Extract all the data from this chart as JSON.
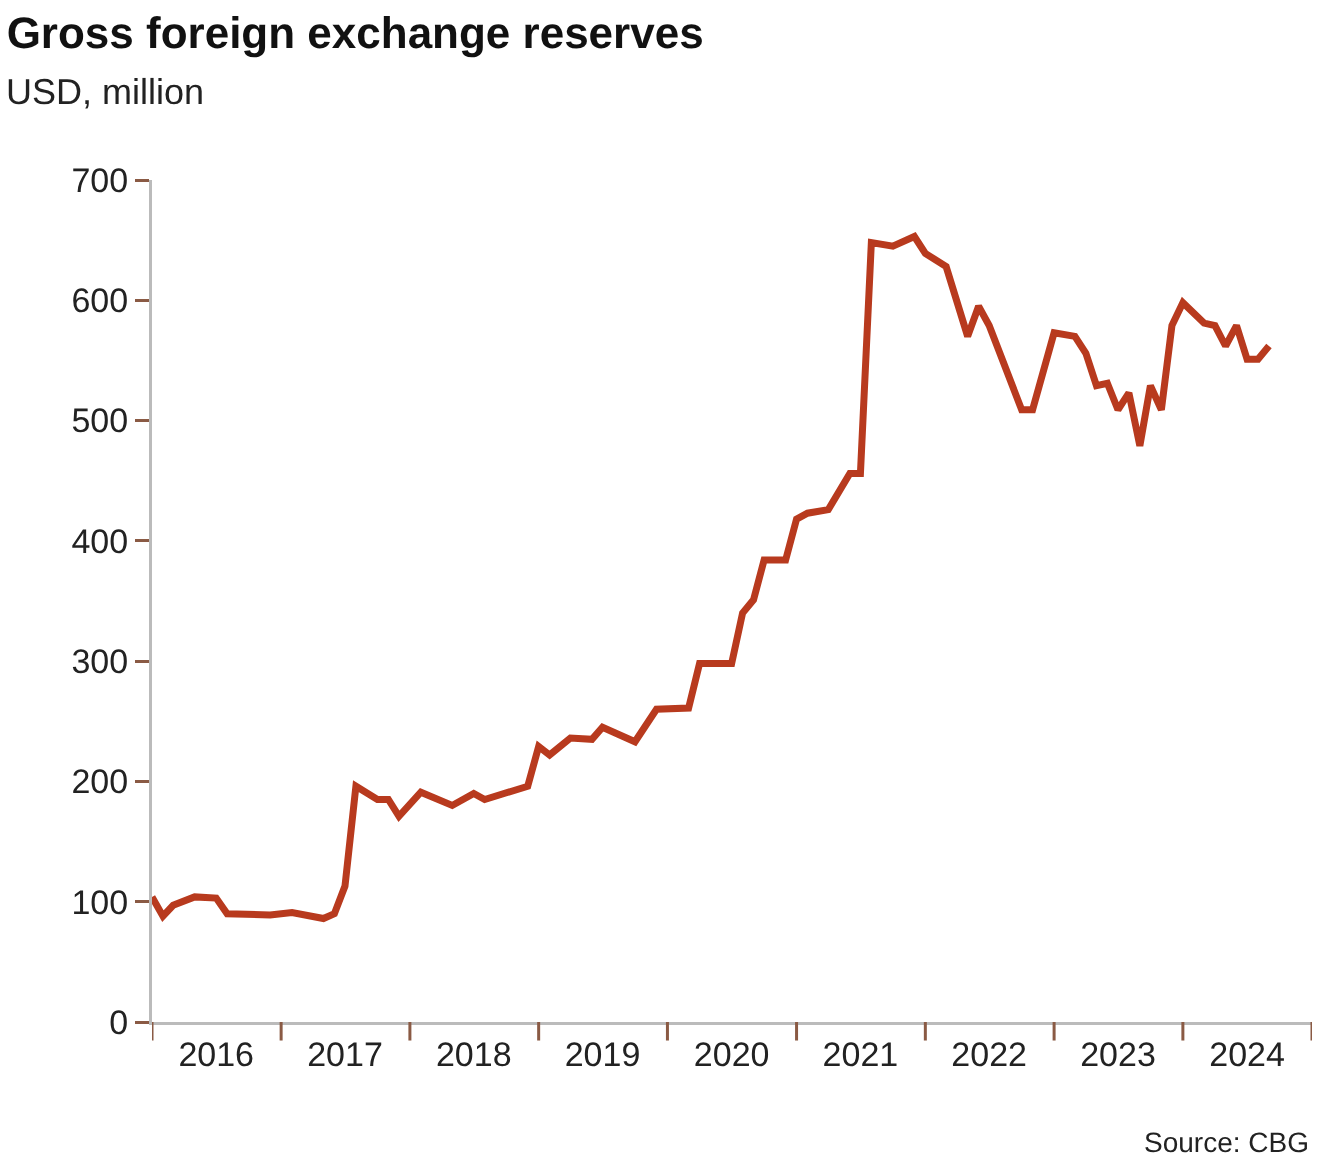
{
  "chart_data": {
    "type": "line",
    "title": "Gross foreign exchange reserves",
    "subtitle": "USD, million",
    "annotations": [
      "Source: CBG"
    ],
    "x": [
      "2016-01",
      "2016-02",
      "2016-03",
      "2016-05",
      "2016-07",
      "2016-08",
      "2016-12",
      "2017-02",
      "2017-05",
      "2017-06",
      "2017-07",
      "2017-08",
      "2017-10",
      "2017-11",
      "2017-12",
      "2018-02",
      "2018-05",
      "2018-07",
      "2018-08",
      "2018-12",
      "2019-01",
      "2019-02",
      "2019-04",
      "2019-06",
      "2019-07",
      "2019-10",
      "2019-12",
      "2020-03",
      "2020-04",
      "2020-07",
      "2020-08",
      "2020-09",
      "2020-10",
      "2020-12",
      "2021-01",
      "2021-02",
      "2021-04",
      "2021-06",
      "2021-07",
      "2021-08",
      "2021-10",
      "2021-12",
      "2022-01",
      "2022-03",
      "2022-05",
      "2022-06",
      "2022-07",
      "2022-10",
      "2022-11",
      "2023-01",
      "2023-03",
      "2023-04",
      "2023-05",
      "2023-06",
      "2023-07",
      "2023-08",
      "2023-09",
      "2023-10",
      "2023-11",
      "2023-12",
      "2024-01",
      "2024-03",
      "2024-04",
      "2024-05",
      "2024-06",
      "2024-07",
      "2024-08",
      "2024-09"
    ],
    "series": [
      {
        "color": "#b83a1e",
        "values": [
          104,
          88,
          97,
          104,
          103,
          90,
          89,
          91,
          86,
          90,
          113,
          196,
          185,
          185,
          171,
          191,
          180,
          190,
          185,
          196,
          229,
          222,
          236,
          235,
          245,
          233,
          260,
          261,
          298,
          298,
          340,
          351,
          384,
          384,
          418,
          423,
          426,
          456,
          456,
          648,
          645,
          653,
          639,
          628,
          570,
          595,
          579,
          509,
          509,
          573,
          570,
          556,
          529,
          531,
          509,
          523,
          479,
          529,
          509,
          579,
          598,
          581,
          579,
          562,
          579,
          551,
          551,
          562
        ]
      }
    ],
    "xlim": [
      "2016-01-01",
      "2025-01-01"
    ],
    "xticks": [
      {
        "value": "2016-01-01",
        "label": null
      },
      {
        "value": "2016-07-01",
        "label": "2016"
      },
      {
        "value": "2017-01-01",
        "label": null
      },
      {
        "value": "2017-07-01",
        "label": "2017"
      },
      {
        "value": "2018-01-01",
        "label": null
      },
      {
        "value": "2018-07-01",
        "label": "2018"
      },
      {
        "value": "2019-01-01",
        "label": null
      },
      {
        "value": "2019-07-01",
        "label": "2019"
      },
      {
        "value": "2020-01-01",
        "label": null
      },
      {
        "value": "2020-07-01",
        "label": "2020"
      },
      {
        "value": "2021-01-01",
        "label": null
      },
      {
        "value": "2021-07-01",
        "label": "2021"
      },
      {
        "value": "2022-01-01",
        "label": null
      },
      {
        "value": "2022-07-01",
        "label": "2022"
      },
      {
        "value": "2023-01-01",
        "label": null
      },
      {
        "value": "2023-07-01",
        "label": "2023"
      },
      {
        "value": "2024-01-01",
        "label": null
      },
      {
        "value": "2024-07-01",
        "label": "2024"
      },
      {
        "value": "2025-01-01",
        "label": null
      }
    ],
    "ylim": [
      0,
      700
    ],
    "yticks": [
      0,
      100,
      200,
      300,
      400,
      500,
      600,
      700
    ],
    "grid": false,
    "marker": "none",
    "line_style": "solid"
  }
}
